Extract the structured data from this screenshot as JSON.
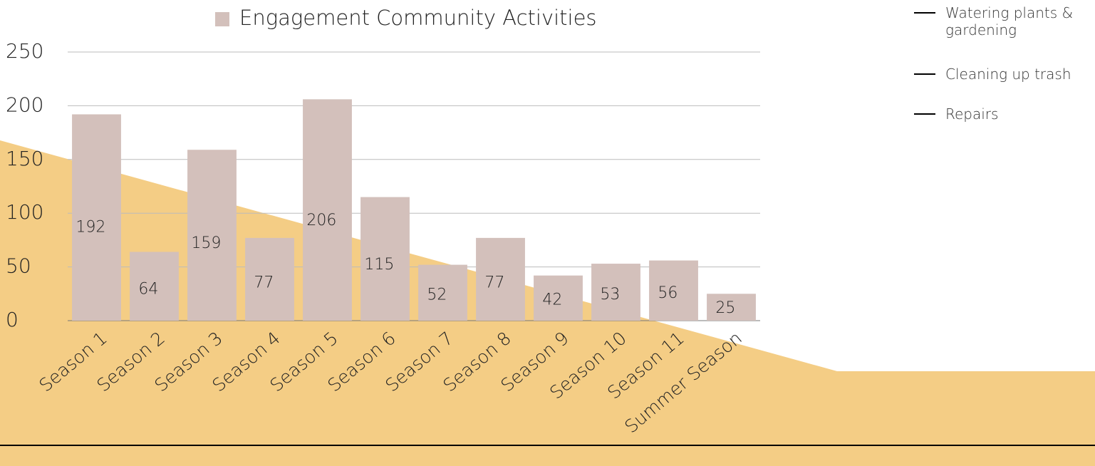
{
  "chart_data": {
    "type": "bar",
    "title": "Engagement Community Activities",
    "categories": [
      "Season 1",
      "Season 2",
      "Season 3",
      "Season 4",
      "Season 5",
      "Season 6",
      "Season 7",
      "Season 8",
      "Season 9",
      "Season 10",
      "Season 11",
      "Summer Season"
    ],
    "values": [
      192,
      64,
      159,
      77,
      206,
      115,
      52,
      77,
      42,
      53,
      56,
      25
    ],
    "color": "#d3c0bb",
    "ylim": [
      0,
      250
    ],
    "yticks": [
      0,
      50,
      100,
      150,
      200,
      250
    ],
    "grid": true,
    "line_legend": [
      "Watering plants & gardening",
      "Cleaning up trash",
      "Repairs"
    ],
    "line_legend_color": "#000000"
  }
}
